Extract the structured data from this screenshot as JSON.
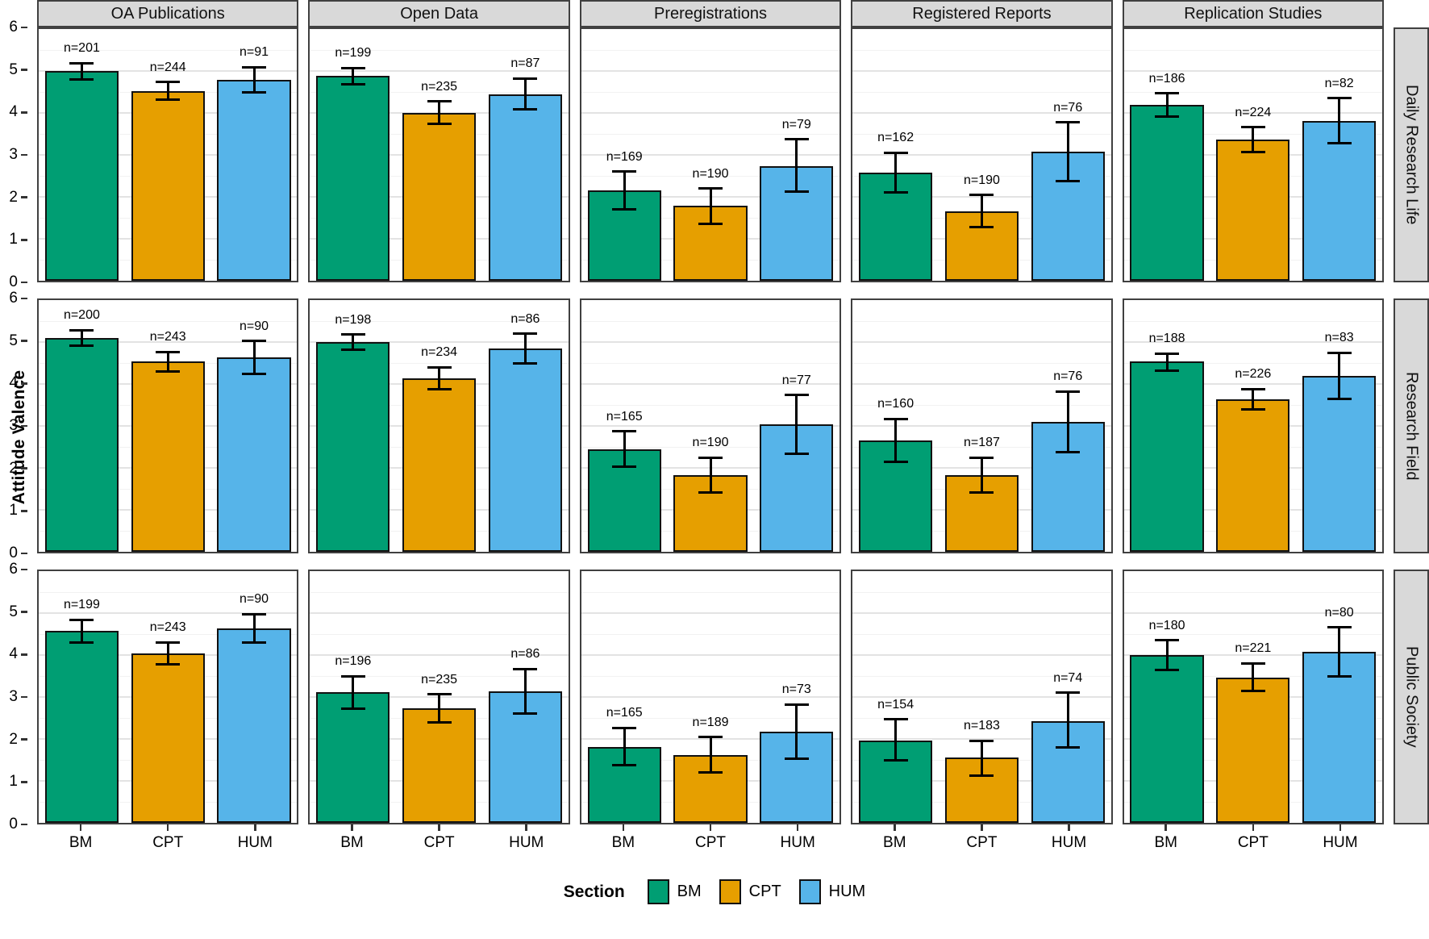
{
  "chart_data": {
    "type": "bar",
    "title": "",
    "ylabel": "Attitude Valence",
    "ylim": [
      0,
      6
    ],
    "y_tick_labels": [
      "0",
      "1",
      "2",
      "3",
      "4",
      "5",
      "6"
    ],
    "categories": [
      "BM",
      "CPT",
      "HUM"
    ],
    "col_facets": [
      "OA Publications",
      "Open Data",
      "Preregistrations",
      "Registered Reports",
      "Replication Studies"
    ],
    "row_facets": [
      "Daily Research Life",
      "Research Field",
      "Public Society"
    ],
    "grid": "major and minor horizontal gridlines, light gray",
    "legend_position": "bottom center",
    "section_colors": {
      "BM": "#009E73",
      "CPT": "#E69F00",
      "HUM": "#56B4E9"
    },
    "facet_rows": [
      {
        "row": "Daily Research Life",
        "panels": [
          {
            "col": "OA Publications",
            "bars": [
              {
                "section": "BM",
                "n_label": "n=201",
                "mean": 5.0,
                "lo": 4.8,
                "hi": 5.19
              },
              {
                "section": "CPT",
                "n_label": "n=244",
                "mean": 4.52,
                "lo": 4.31,
                "hi": 4.74
              },
              {
                "section": "HUM",
                "n_label": "n=91",
                "mean": 4.79,
                "lo": 4.49,
                "hi": 5.09
              }
            ]
          },
          {
            "col": "Open Data",
            "bars": [
              {
                "section": "BM",
                "n_label": "n=199",
                "mean": 4.88,
                "lo": 4.68,
                "hi": 5.07
              },
              {
                "section": "CPT",
                "n_label": "n=235",
                "mean": 4.0,
                "lo": 3.74,
                "hi": 4.27
              },
              {
                "section": "HUM",
                "n_label": "n=87",
                "mean": 4.45,
                "lo": 4.08,
                "hi": 4.82
              }
            ]
          },
          {
            "col": "Preregistrations",
            "bars": [
              {
                "section": "BM",
                "n_label": "n=169",
                "mean": 2.15,
                "lo": 1.71,
                "hi": 2.6
              },
              {
                "section": "CPT",
                "n_label": "n=190",
                "mean": 1.78,
                "lo": 1.36,
                "hi": 2.2
              },
              {
                "section": "HUM",
                "n_label": "n=79",
                "mean": 2.74,
                "lo": 2.13,
                "hi": 3.37
              }
            ]
          },
          {
            "col": "Registered Reports",
            "bars": [
              {
                "section": "BM",
                "n_label": "n=162",
                "mean": 2.57,
                "lo": 2.1,
                "hi": 3.05
              },
              {
                "section": "CPT",
                "n_label": "n=190",
                "mean": 1.65,
                "lo": 1.27,
                "hi": 2.04
              },
              {
                "section": "HUM",
                "n_label": "n=76",
                "mean": 3.07,
                "lo": 2.37,
                "hi": 3.77
              }
            ]
          },
          {
            "col": "Replication Studies",
            "bars": [
              {
                "section": "BM",
                "n_label": "n=186",
                "mean": 4.19,
                "lo": 3.92,
                "hi": 4.47
              },
              {
                "section": "CPT",
                "n_label": "n=224",
                "mean": 3.36,
                "lo": 3.07,
                "hi": 3.66
              },
              {
                "section": "HUM",
                "n_label": "n=82",
                "mean": 3.8,
                "lo": 3.27,
                "hi": 4.35
              }
            ]
          }
        ]
      },
      {
        "row": "Research Field",
        "panels": [
          {
            "col": "OA Publications",
            "bars": [
              {
                "section": "BM",
                "n_label": "n=200",
                "mean": 5.1,
                "lo": 4.92,
                "hi": 5.28
              },
              {
                "section": "CPT",
                "n_label": "n=243",
                "mean": 4.53,
                "lo": 4.3,
                "hi": 4.76
              },
              {
                "section": "HUM",
                "n_label": "n=90",
                "mean": 4.63,
                "lo": 4.25,
                "hi": 5.02
              }
            ]
          },
          {
            "col": "Open Data",
            "bars": [
              {
                "section": "BM",
                "n_label": "n=198",
                "mean": 5.0,
                "lo": 4.82,
                "hi": 5.18
              },
              {
                "section": "CPT",
                "n_label": "n=234",
                "mean": 4.13,
                "lo": 3.88,
                "hi": 4.4
              },
              {
                "section": "HUM",
                "n_label": "n=86",
                "mean": 4.85,
                "lo": 4.5,
                "hi": 5.2
              }
            ]
          },
          {
            "col": "Preregistrations",
            "bars": [
              {
                "section": "BM",
                "n_label": "n=165",
                "mean": 2.45,
                "lo": 2.02,
                "hi": 2.87
              },
              {
                "section": "CPT",
                "n_label": "n=190",
                "mean": 1.83,
                "lo": 1.42,
                "hi": 2.25
              },
              {
                "section": "HUM",
                "n_label": "n=77",
                "mean": 3.04,
                "lo": 2.34,
                "hi": 3.74
              }
            ]
          },
          {
            "col": "Registered Reports",
            "bars": [
              {
                "section": "BM",
                "n_label": "n=160",
                "mean": 2.65,
                "lo": 2.15,
                "hi": 3.17
              },
              {
                "section": "CPT",
                "n_label": "n=187",
                "mean": 1.83,
                "lo": 1.42,
                "hi": 2.25
              },
              {
                "section": "HUM",
                "n_label": "n=76",
                "mean": 3.1,
                "lo": 2.38,
                "hi": 3.82
              }
            ]
          },
          {
            "col": "Replication Studies",
            "bars": [
              {
                "section": "BM",
                "n_label": "n=188",
                "mean": 4.53,
                "lo": 4.32,
                "hi": 4.73
              },
              {
                "section": "CPT",
                "n_label": "n=226",
                "mean": 3.63,
                "lo": 3.4,
                "hi": 3.88
              },
              {
                "section": "HUM",
                "n_label": "n=83",
                "mean": 4.2,
                "lo": 3.65,
                "hi": 4.75
              }
            ]
          }
        ]
      },
      {
        "row": "Public Society",
        "panels": [
          {
            "col": "OA Publications",
            "bars": [
              {
                "section": "BM",
                "n_label": "n=199",
                "mean": 4.57,
                "lo": 4.3,
                "hi": 4.84
              },
              {
                "section": "CPT",
                "n_label": "n=243",
                "mean": 4.03,
                "lo": 3.77,
                "hi": 4.3
              },
              {
                "section": "HUM",
                "n_label": "n=90",
                "mean": 4.64,
                "lo": 4.3,
                "hi": 4.98
              }
            ]
          },
          {
            "col": "Open Data",
            "bars": [
              {
                "section": "BM",
                "n_label": "n=196",
                "mean": 3.12,
                "lo": 2.73,
                "hi": 3.5
              },
              {
                "section": "CPT",
                "n_label": "n=235",
                "mean": 2.73,
                "lo": 2.4,
                "hi": 3.06
              },
              {
                "section": "HUM",
                "n_label": "n=86",
                "mean": 3.13,
                "lo": 2.6,
                "hi": 3.67
              }
            ]
          },
          {
            "col": "Preregistrations",
            "bars": [
              {
                "section": "BM",
                "n_label": "n=165",
                "mean": 1.8,
                "lo": 1.37,
                "hi": 2.26
              },
              {
                "section": "CPT",
                "n_label": "n=189",
                "mean": 1.62,
                "lo": 1.2,
                "hi": 2.04
              },
              {
                "section": "HUM",
                "n_label": "n=73",
                "mean": 2.17,
                "lo": 1.52,
                "hi": 2.82
              }
            ]
          },
          {
            "col": "Registered Reports",
            "bars": [
              {
                "section": "BM",
                "n_label": "n=154",
                "mean": 1.97,
                "lo": 1.5,
                "hi": 2.47
              },
              {
                "section": "CPT",
                "n_label": "n=183",
                "mean": 1.55,
                "lo": 1.13,
                "hi": 1.96
              },
              {
                "section": "HUM",
                "n_label": "n=74",
                "mean": 2.43,
                "lo": 1.8,
                "hi": 3.1
              }
            ]
          },
          {
            "col": "Replication Studies",
            "bars": [
              {
                "section": "BM",
                "n_label": "n=180",
                "mean": 4.0,
                "lo": 3.65,
                "hi": 4.35
              },
              {
                "section": "CPT",
                "n_label": "n=221",
                "mean": 3.47,
                "lo": 3.15,
                "hi": 3.8
              },
              {
                "section": "HUM",
                "n_label": "n=80",
                "mean": 4.07,
                "lo": 3.5,
                "hi": 4.66
              }
            ]
          }
        ]
      }
    ],
    "legend": {
      "title": "Section",
      "entries": [
        {
          "label": "BM",
          "color": "#009E73"
        },
        {
          "label": "CPT",
          "color": "#E69F00"
        },
        {
          "label": "HUM",
          "color": "#56B4E9"
        }
      ]
    }
  }
}
